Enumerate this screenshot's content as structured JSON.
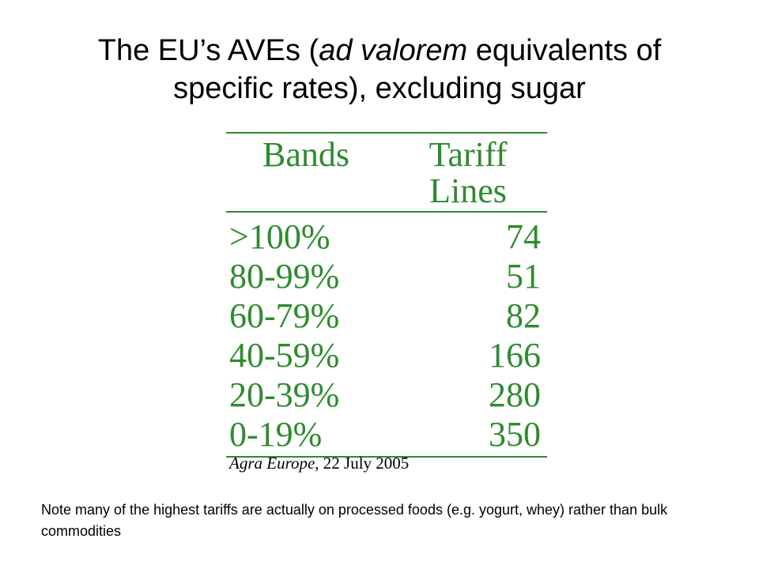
{
  "title": {
    "before": "The EU’s AVEs (",
    "italic": "ad valorem",
    "after_line1": " equivalents of",
    "line2": "specific rates), excluding sugar"
  },
  "table": {
    "header_bands": "Bands",
    "header_tariff": "Tariff",
    "header_lines": "Lines",
    "rows": [
      {
        "band": ">100%",
        "count": "74"
      },
      {
        "band": "80-99%",
        "count": "51"
      },
      {
        "band": "60-79%",
        "count": "82"
      },
      {
        "band": "40-59%",
        "count": "166"
      },
      {
        "band": "20-39%",
        "count": "280"
      },
      {
        "band": "0-19%",
        "count": "350"
      }
    ],
    "color": "#2e8b2e"
  },
  "source": {
    "publication": "Agra Europe",
    "date": ", 22 July 2005"
  },
  "note": "Note many of the highest tariffs are actually on processed foods (e.g. yogurt, whey) rather than bulk commodities"
}
